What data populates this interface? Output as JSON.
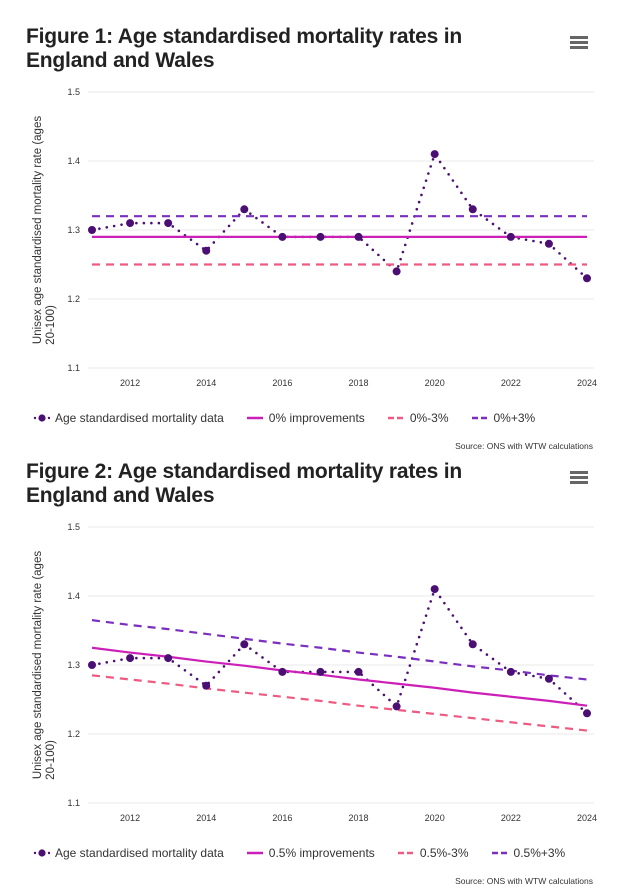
{
  "colors": {
    "data": "#4b0f73",
    "base": "#cc1fb8",
    "minus": "#ef5a82",
    "plus": "#7b2fbf",
    "grid": "#e8e8e8"
  },
  "figures": [
    {
      "title": "Figure 1: Age standardised mortality rates in England and Wales",
      "menu_icon": "hamburger-menu-icon",
      "legend": [
        {
          "label": "Age standardised mortality data",
          "style": "dotted-marker",
          "color_key": "data"
        },
        {
          "label": "0% improvements",
          "style": "solid",
          "color_key": "base"
        },
        {
          "label": "0%-3%",
          "style": "dashed",
          "color_key": "minus"
        },
        {
          "label": "0%+3%",
          "style": "dashed",
          "color_key": "plus"
        }
      ],
      "source": "Source: ONS with WTW calculations"
    },
    {
      "title": "Figure 2: Age standardised mortality rates in England and Wales",
      "menu_icon": "hamburger-menu-icon",
      "legend": [
        {
          "label": "Age standardised mortality data",
          "style": "dotted-marker",
          "color_key": "data"
        },
        {
          "label": "0.5% improvements",
          "style": "solid",
          "color_key": "base"
        },
        {
          "label": "0.5%-3%",
          "style": "dashed",
          "color_key": "minus"
        },
        {
          "label": "0.5%+3%",
          "style": "dashed",
          "color_key": "plus"
        }
      ],
      "source": "Source: ONS with WTW calculations"
    }
  ],
  "chart_data": [
    {
      "type": "line",
      "title": "Figure 1: Age standardised mortality rates in England and Wales",
      "xlabel": "",
      "ylabel": "Unisex age standardised mortality rate (ages 20-100)",
      "xlim": [
        2011,
        2024
      ],
      "ylim": [
        1.1,
        1.5
      ],
      "x_ticks": [
        "2012",
        "2014",
        "2016",
        "2018",
        "2020",
        "2022",
        "2024"
      ],
      "y_ticks": [
        "1.1",
        "1.2",
        "1.3",
        "1.4",
        "1.5"
      ],
      "grid": true,
      "legend_position": "bottom",
      "x": [
        2011,
        2012,
        2013,
        2014,
        2015,
        2016,
        2017,
        2018,
        2019,
        2020,
        2021,
        2022,
        2023,
        2024
      ],
      "series": [
        {
          "name": "Age standardised mortality data",
          "key": "data",
          "values": [
            1.3,
            1.31,
            1.31,
            1.27,
            1.33,
            1.29,
            1.29,
            1.29,
            1.24,
            1.41,
            1.33,
            1.29,
            1.28,
            1.23
          ]
        },
        {
          "name": "0% improvements",
          "key": "base",
          "values": [
            1.29,
            1.29,
            1.29,
            1.29,
            1.29,
            1.29,
            1.29,
            1.29,
            1.29,
            1.29,
            1.29,
            1.29,
            1.29,
            1.29
          ]
        },
        {
          "name": "0%-3%",
          "key": "minus",
          "values": [
            1.25,
            1.25,
            1.25,
            1.25,
            1.25,
            1.25,
            1.25,
            1.25,
            1.25,
            1.25,
            1.25,
            1.25,
            1.25,
            1.25
          ]
        },
        {
          "name": "0%+3%",
          "key": "plus",
          "values": [
            1.32,
            1.32,
            1.32,
            1.32,
            1.32,
            1.32,
            1.32,
            1.32,
            1.32,
            1.32,
            1.32,
            1.32,
            1.32,
            1.32
          ]
        }
      ]
    },
    {
      "type": "line",
      "title": "Figure 2: Age standardised mortality rates in England and Wales",
      "xlabel": "",
      "ylabel": "Unisex age standardised mortality rate (ages 20-100)",
      "xlim": [
        2011,
        2024
      ],
      "ylim": [
        1.1,
        1.5
      ],
      "x_ticks": [
        "2012",
        "2014",
        "2016",
        "2018",
        "2020",
        "2022",
        "2024"
      ],
      "y_ticks": [
        "1.1",
        "1.2",
        "1.3",
        "1.4",
        "1.5"
      ],
      "grid": true,
      "legend_position": "bottom",
      "x": [
        2011,
        2012,
        2013,
        2014,
        2015,
        2016,
        2017,
        2018,
        2019,
        2020,
        2021,
        2022,
        2023,
        2024
      ],
      "series": [
        {
          "name": "Age standardised mortality data",
          "key": "data",
          "values": [
            1.3,
            1.31,
            1.31,
            1.27,
            1.33,
            1.29,
            1.29,
            1.29,
            1.24,
            1.41,
            1.33,
            1.29,
            1.28,
            1.23
          ]
        },
        {
          "name": "0.5% improvements",
          "key": "base",
          "values": [
            1.325,
            1.318,
            1.312,
            1.305,
            1.299,
            1.292,
            1.286,
            1.279,
            1.273,
            1.267,
            1.26,
            1.254,
            1.248,
            1.241
          ]
        },
        {
          "name": "0.5%-3%",
          "key": "minus",
          "values": [
            1.285,
            1.279,
            1.273,
            1.266,
            1.26,
            1.254,
            1.248,
            1.241,
            1.235,
            1.229,
            1.223,
            1.217,
            1.211,
            1.205
          ]
        },
        {
          "name": "0.5%+3%",
          "key": "plus",
          "values": [
            1.365,
            1.358,
            1.352,
            1.345,
            1.338,
            1.331,
            1.325,
            1.318,
            1.312,
            1.305,
            1.298,
            1.292,
            1.285,
            1.279
          ]
        }
      ]
    }
  ]
}
